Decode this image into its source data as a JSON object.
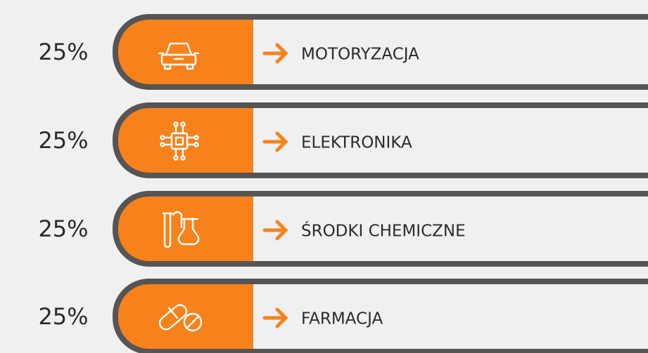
{
  "rows": [
    {
      "percent": "25%",
      "label": "MOTORYZACJA"
    },
    {
      "percent": "25%",
      "label": "ELEKTRONIKA"
    },
    {
      "percent": "25%",
      "label": "ŚRODKI CHEMICZNE"
    },
    {
      "percent": "25%",
      "label": "FARMACJA"
    }
  ]
}
